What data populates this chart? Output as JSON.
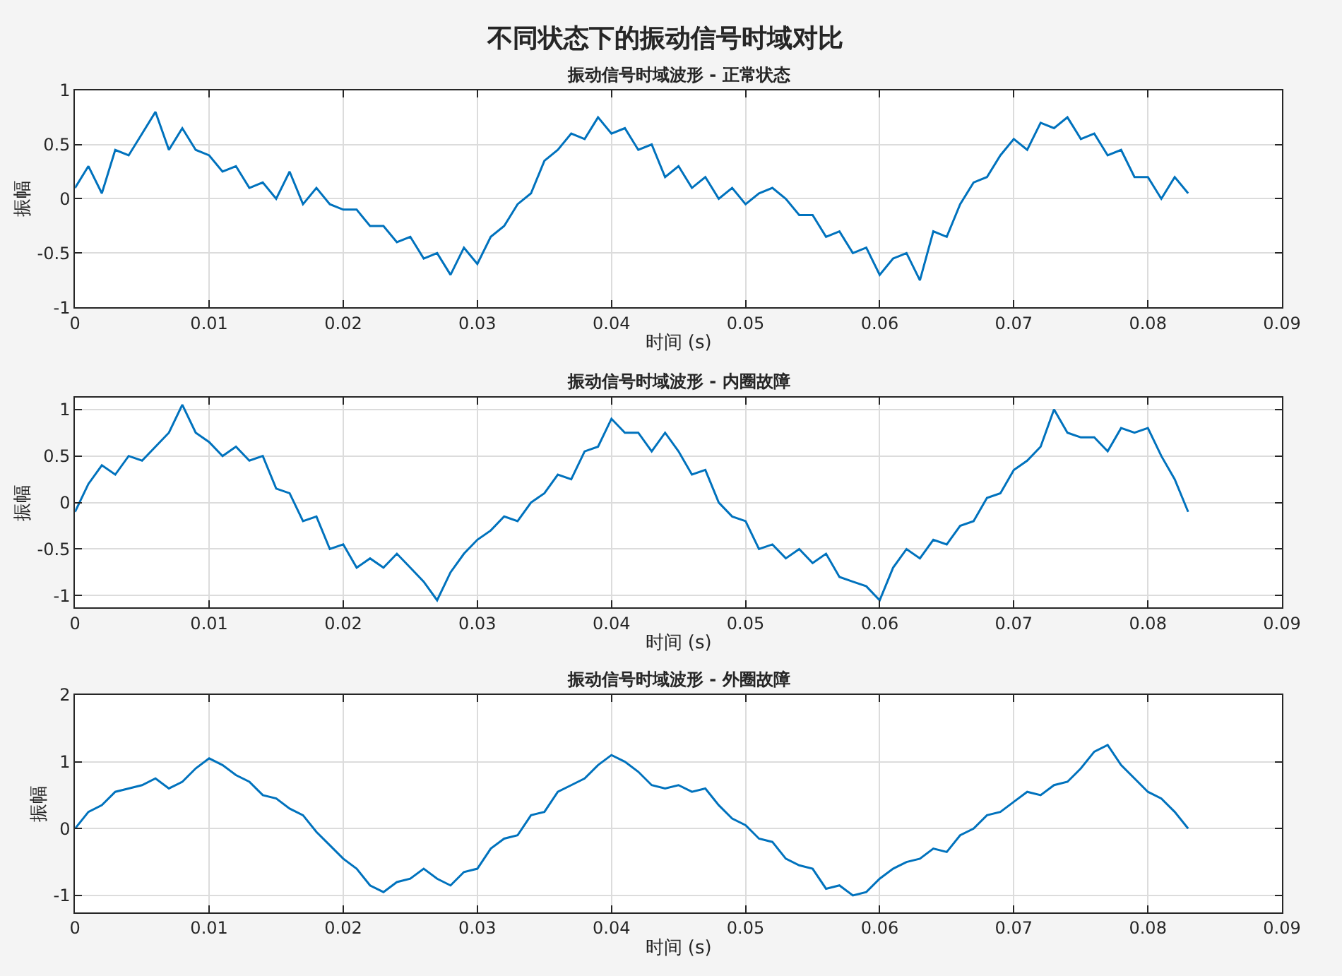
{
  "chart_data": [
    {
      "type": "line",
      "title": "振动信号时域波形 - 正常状态",
      "xlabel": "时间 (s)",
      "ylabel": "振幅",
      "annotations": [
        "不同状态下的振动信号时域对比"
      ],
      "xlim": [
        0,
        0.09
      ],
      "xticks": [
        0,
        0.01,
        0.02,
        0.03,
        0.04,
        0.05,
        0.06,
        0.07,
        0.08,
        0.09
      ],
      "ylim": [
        -1,
        1
      ],
      "yticks": [
        -1,
        -0.5,
        0,
        0.5,
        1
      ],
      "grid": true,
      "x": [
        0,
        0.001,
        0.002,
        0.003,
        0.004,
        0.005,
        0.006,
        0.007,
        0.008,
        0.009,
        0.01,
        0.011,
        0.012,
        0.013,
        0.014,
        0.015,
        0.016,
        0.017,
        0.018,
        0.019,
        0.02,
        0.021,
        0.022,
        0.023,
        0.024,
        0.025,
        0.026,
        0.027,
        0.028,
        0.029,
        0.03,
        0.031,
        0.032,
        0.033,
        0.034,
        0.035,
        0.036,
        0.037,
        0.038,
        0.039,
        0.04,
        0.041,
        0.042,
        0.043,
        0.044,
        0.045,
        0.046,
        0.047,
        0.048,
        0.049,
        0.05,
        0.051,
        0.052,
        0.053,
        0.054,
        0.055,
        0.056,
        0.057,
        0.058,
        0.059,
        0.06,
        0.061,
        0.062,
        0.063,
        0.064,
        0.065,
        0.066,
        0.067,
        0.068,
        0.069,
        0.07,
        0.071,
        0.072,
        0.073,
        0.074,
        0.075,
        0.076,
        0.077,
        0.078,
        0.079,
        0.08,
        0.081,
        0.082,
        0.083
      ],
      "series": [
        {
          "color": "#0072bd",
          "values": [
            0.1,
            0.3,
            0.05,
            0.45,
            0.4,
            0.6,
            0.8,
            0.45,
            0.65,
            0.45,
            0.4,
            0.25,
            0.3,
            0.1,
            0.15,
            0.0,
            0.25,
            -0.05,
            0.1,
            -0.05,
            -0.1,
            -0.1,
            -0.25,
            -0.25,
            -0.4,
            -0.35,
            -0.55,
            -0.5,
            -0.7,
            -0.45,
            -0.6,
            -0.35,
            -0.25,
            -0.05,
            0.05,
            0.35,
            0.45,
            0.6,
            0.55,
            0.75,
            0.6,
            0.65,
            0.45,
            0.5,
            0.2,
            0.3,
            0.1,
            0.2,
            0.0,
            0.1,
            -0.05,
            0.05,
            0.1,
            0.0,
            -0.15,
            -0.15,
            -0.35,
            -0.3,
            -0.5,
            -0.45,
            -0.7,
            -0.55,
            -0.5,
            -0.75,
            -0.3,
            -0.35,
            -0.05,
            0.15,
            0.2,
            0.4,
            0.55,
            0.45,
            0.7,
            0.65,
            0.75,
            0.55,
            0.6,
            0.4,
            0.45,
            0.2,
            0.2,
            0.0,
            0.2,
            0.05
          ]
        }
      ]
    },
    {
      "type": "line",
      "title": "振动信号时域波形 - 内圈故障",
      "xlabel": "时间 (s)",
      "ylabel": "振幅",
      "xlim": [
        0,
        0.09
      ],
      "xticks": [
        0,
        0.01,
        0.02,
        0.03,
        0.04,
        0.05,
        0.06,
        0.07,
        0.08,
        0.09
      ],
      "ylim": [
        -1.13,
        1.13
      ],
      "yticks": [
        -1,
        -0.5,
        0,
        0.5,
        1
      ],
      "grid": true,
      "x": [
        0,
        0.001,
        0.002,
        0.003,
        0.004,
        0.005,
        0.006,
        0.007,
        0.008,
        0.009,
        0.01,
        0.011,
        0.012,
        0.013,
        0.014,
        0.015,
        0.016,
        0.017,
        0.018,
        0.019,
        0.02,
        0.021,
        0.022,
        0.023,
        0.024,
        0.025,
        0.026,
        0.027,
        0.028,
        0.029,
        0.03,
        0.031,
        0.032,
        0.033,
        0.034,
        0.035,
        0.036,
        0.037,
        0.038,
        0.039,
        0.04,
        0.041,
        0.042,
        0.043,
        0.044,
        0.045,
        0.046,
        0.047,
        0.048,
        0.049,
        0.05,
        0.051,
        0.052,
        0.053,
        0.054,
        0.055,
        0.056,
        0.057,
        0.058,
        0.059,
        0.06,
        0.061,
        0.062,
        0.063,
        0.064,
        0.065,
        0.066,
        0.067,
        0.068,
        0.069,
        0.07,
        0.071,
        0.072,
        0.073,
        0.074,
        0.075,
        0.076,
        0.077,
        0.078,
        0.079,
        0.08,
        0.081,
        0.082,
        0.083
      ],
      "series": [
        {
          "color": "#0072bd",
          "values": [
            -0.1,
            0.2,
            0.4,
            0.3,
            0.5,
            0.45,
            0.6,
            0.75,
            1.05,
            0.75,
            0.65,
            0.5,
            0.6,
            0.45,
            0.5,
            0.15,
            0.1,
            -0.2,
            -0.15,
            -0.5,
            -0.45,
            -0.7,
            -0.6,
            -0.7,
            -0.55,
            -0.7,
            -0.85,
            -1.05,
            -0.75,
            -0.55,
            -0.4,
            -0.3,
            -0.15,
            -0.2,
            0.0,
            0.1,
            0.3,
            0.25,
            0.55,
            0.6,
            0.9,
            0.75,
            0.75,
            0.55,
            0.75,
            0.55,
            0.3,
            0.35,
            0.0,
            -0.15,
            -0.2,
            -0.5,
            -0.45,
            -0.6,
            -0.5,
            -0.65,
            -0.55,
            -0.8,
            -0.85,
            -0.9,
            -1.05,
            -0.7,
            -0.5,
            -0.6,
            -0.4,
            -0.45,
            -0.25,
            -0.2,
            0.05,
            0.1,
            0.35,
            0.45,
            0.6,
            1.0,
            0.75,
            0.7,
            0.7,
            0.55,
            0.8,
            0.75,
            0.8,
            0.5,
            0.25,
            -0.1
          ]
        }
      ]
    },
    {
      "type": "line",
      "title": "振动信号时域波形 - 外圈故障",
      "xlabel": "时间 (s)",
      "ylabel": "振幅",
      "xlim": [
        0,
        0.09
      ],
      "xticks": [
        0,
        0.01,
        0.02,
        0.03,
        0.04,
        0.05,
        0.06,
        0.07,
        0.08,
        0.09
      ],
      "ylim": [
        -1.25,
        2
      ],
      "yticks": [
        -1,
        0,
        1,
        2
      ],
      "grid": true,
      "x": [
        0,
        0.001,
        0.002,
        0.003,
        0.004,
        0.005,
        0.006,
        0.007,
        0.008,
        0.009,
        0.01,
        0.011,
        0.012,
        0.013,
        0.014,
        0.015,
        0.016,
        0.017,
        0.018,
        0.019,
        0.02,
        0.021,
        0.022,
        0.023,
        0.024,
        0.025,
        0.026,
        0.027,
        0.028,
        0.029,
        0.03,
        0.031,
        0.032,
        0.033,
        0.034,
        0.035,
        0.036,
        0.037,
        0.038,
        0.039,
        0.04,
        0.041,
        0.042,
        0.043,
        0.044,
        0.045,
        0.046,
        0.047,
        0.048,
        0.049,
        0.05,
        0.051,
        0.052,
        0.053,
        0.054,
        0.055,
        0.056,
        0.057,
        0.058,
        0.059,
        0.06,
        0.061,
        0.062,
        0.063,
        0.064,
        0.065,
        0.066,
        0.067,
        0.068,
        0.069,
        0.07,
        0.071,
        0.072,
        0.073,
        0.074,
        0.075,
        0.076,
        0.077,
        0.078,
        0.079,
        0.08,
        0.081,
        0.082,
        0.083
      ],
      "series": [
        {
          "color": "#0072bd",
          "values": [
            0.0,
            0.25,
            0.35,
            0.55,
            0.6,
            0.65,
            0.75,
            0.6,
            0.7,
            0.9,
            1.05,
            0.95,
            0.8,
            0.7,
            0.5,
            0.45,
            0.3,
            0.2,
            -0.05,
            -0.25,
            -0.45,
            -0.6,
            -0.85,
            -0.95,
            -0.8,
            -0.75,
            -0.6,
            -0.75,
            -0.85,
            -0.65,
            -0.6,
            -0.3,
            -0.15,
            -0.1,
            0.2,
            0.25,
            0.55,
            0.65,
            0.75,
            0.95,
            1.1,
            1.0,
            0.85,
            0.65,
            0.6,
            0.65,
            0.55,
            0.6,
            0.35,
            0.15,
            0.05,
            -0.15,
            -0.2,
            -0.45,
            -0.55,
            -0.6,
            -0.9,
            -0.85,
            -1.0,
            -0.95,
            -0.75,
            -0.6,
            -0.5,
            -0.45,
            -0.3,
            -0.35,
            -0.1,
            0.0,
            0.2,
            0.25,
            0.4,
            0.55,
            0.5,
            0.65,
            0.7,
            0.9,
            1.15,
            1.25,
            0.95,
            0.75,
            0.55,
            0.45,
            0.25,
            0.0
          ]
        }
      ]
    }
  ]
}
